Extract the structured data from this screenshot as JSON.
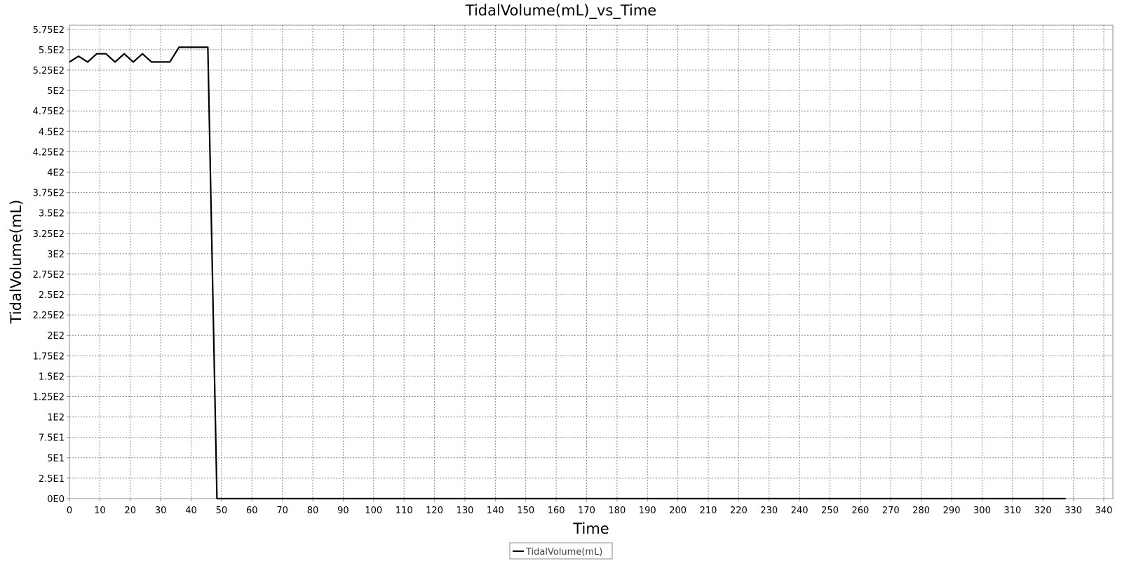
{
  "chart_data": {
    "type": "line",
    "title": "TidalVolume(mL)_vs_Time",
    "xlabel": "Time",
    "ylabel": "TidalVolume(mL)",
    "xlim": [
      0,
      343
    ],
    "ylim": [
      0,
      580
    ],
    "x_ticks": [
      0,
      10,
      20,
      30,
      40,
      50,
      60,
      70,
      80,
      90,
      100,
      110,
      120,
      130,
      140,
      150,
      160,
      170,
      180,
      190,
      200,
      210,
      220,
      230,
      240,
      250,
      260,
      270,
      280,
      290,
      300,
      310,
      320,
      330,
      340
    ],
    "y_ticks": [
      {
        "value": 0,
        "label": "0E0"
      },
      {
        "value": 25,
        "label": "2.5E1"
      },
      {
        "value": 50,
        "label": "5E1"
      },
      {
        "value": 75,
        "label": "7.5E1"
      },
      {
        "value": 100,
        "label": "1E2"
      },
      {
        "value": 125,
        "label": "1.25E2"
      },
      {
        "value": 150,
        "label": "1.5E2"
      },
      {
        "value": 175,
        "label": "1.75E2"
      },
      {
        "value": 200,
        "label": "2E2"
      },
      {
        "value": 225,
        "label": "2.25E2"
      },
      {
        "value": 250,
        "label": "2.5E2"
      },
      {
        "value": 275,
        "label": "2.75E2"
      },
      {
        "value": 300,
        "label": "3E2"
      },
      {
        "value": 325,
        "label": "3.25E2"
      },
      {
        "value": 350,
        "label": "3.5E2"
      },
      {
        "value": 375,
        "label": "3.75E2"
      },
      {
        "value": 400,
        "label": "4E2"
      },
      {
        "value": 425,
        "label": "4.25E2"
      },
      {
        "value": 450,
        "label": "4.5E2"
      },
      {
        "value": 475,
        "label": "4.75E2"
      },
      {
        "value": 500,
        "label": "5E2"
      },
      {
        "value": 525,
        "label": "5.25E2"
      },
      {
        "value": 550,
        "label": "5.5E2"
      },
      {
        "value": 575,
        "label": "5.75E2"
      }
    ],
    "grid": true,
    "legend": "bottom-center",
    "series": [
      {
        "name": "TidalVolume(mL)",
        "color": "#000000",
        "x": [
          0,
          3,
          6,
          9,
          12,
          15,
          18,
          21,
          24,
          27,
          30,
          33,
          36,
          39,
          42,
          45.5,
          48.5,
          327.5
        ],
        "y": [
          535,
          542,
          535,
          545,
          545,
          535,
          545,
          535,
          545,
          535,
          535,
          535,
          553,
          553,
          553,
          553,
          0,
          0
        ]
      }
    ]
  }
}
